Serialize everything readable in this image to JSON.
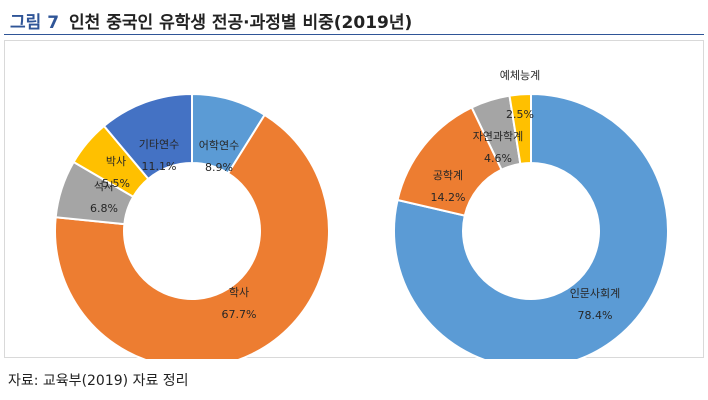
{
  "figure": {
    "number": "그림 7",
    "title": "인천 중국인 유학생 전공·과정별 비중(2019년)"
  },
  "source": "자료: 교육부(2019) 자료 정리",
  "chart_data": [
    {
      "type": "pie",
      "title": "",
      "donut": true,
      "start_angle_deg": 0,
      "direction": "clockwise",
      "slices": [
        {
          "label": "어학연수",
          "value": 8.9,
          "display": "8.9%",
          "color": "#5b9bd5"
        },
        {
          "label": "학사",
          "value": 67.7,
          "display": "67.7%",
          "color": "#ed7d31"
        },
        {
          "label": "석사",
          "value": 6.8,
          "display": "6.8%",
          "color": "#a5a5a5"
        },
        {
          "label": "박사",
          "value": 5.5,
          "display": "5.5%",
          "color": "#ffc000"
        },
        {
          "label": "기타연수",
          "value": 11.1,
          "display": "11.1%",
          "color": "#4472c4"
        }
      ]
    },
    {
      "type": "pie",
      "title": "",
      "donut": true,
      "start_angle_deg": 0,
      "direction": "clockwise",
      "slices": [
        {
          "label": "인문사회계",
          "value": 78.4,
          "display": "78.4%",
          "color": "#5b9bd5"
        },
        {
          "label": "공학계",
          "value": 14.2,
          "display": "14.2%",
          "color": "#ed7d31"
        },
        {
          "label": "자연과학계",
          "value": 4.6,
          "display": "4.6%",
          "color": "#a5a5a5"
        },
        {
          "label": "예체능계",
          "value": 2.5,
          "display": "2.5%",
          "color": "#ffc000"
        }
      ]
    }
  ]
}
